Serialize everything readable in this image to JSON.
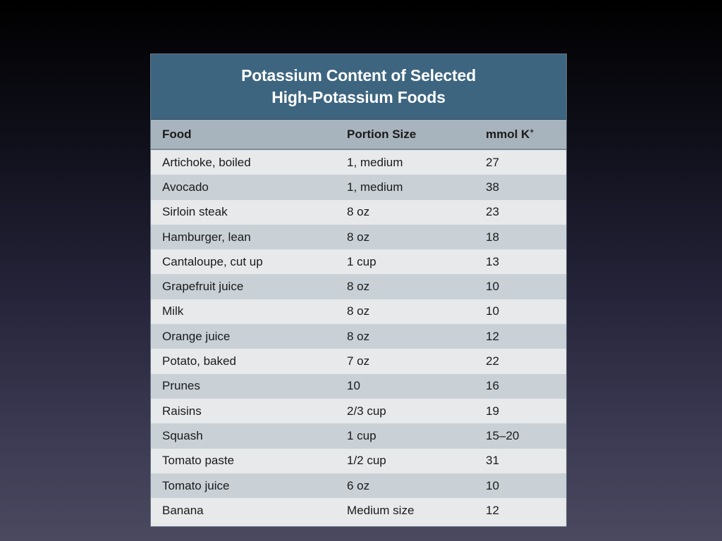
{
  "table": {
    "title_line1": "Potassium Content of Selected",
    "title_line2": "High-Potassium Foods",
    "headers": {
      "food": "Food",
      "portion": "Portion Size",
      "mmol": "mmol K",
      "mmol_sup": "+"
    },
    "rows": [
      {
        "food": "Artichoke, boiled",
        "portion": "1, medium",
        "mmol": "27"
      },
      {
        "food": "Avocado",
        "portion": "1, medium",
        "mmol": "38"
      },
      {
        "food": "Sirloin steak",
        "portion": "8 oz",
        "mmol": "23"
      },
      {
        "food": "Hamburger, lean",
        "portion": "8 oz",
        "mmol": "18"
      },
      {
        "food": "Cantaloupe, cut up",
        "portion": "1 cup",
        "mmol": "13"
      },
      {
        "food": "Grapefruit juice",
        "portion": "8 oz",
        "mmol": "10"
      },
      {
        "food": "Milk",
        "portion": "8 oz",
        "mmol": "10"
      },
      {
        "food": "Orange juice",
        "portion": "8 oz",
        "mmol": "12"
      },
      {
        "food": "Potato, baked",
        "portion": "7 oz",
        "mmol": "22"
      },
      {
        "food": "Prunes",
        "portion": "10",
        "mmol": "16"
      },
      {
        "food": "Raisins",
        "portion": "2/3 cup",
        "mmol": "19"
      },
      {
        "food": "Squash",
        "portion": "1 cup",
        "mmol": "15–20"
      },
      {
        "food": "Tomato paste",
        "portion": "1/2 cup",
        "mmol": "31"
      },
      {
        "food": "Tomato juice",
        "portion": "6 oz",
        "mmol": "10"
      },
      {
        "food": "Banana",
        "portion": "Medium size",
        "mmol": "12"
      }
    ]
  }
}
